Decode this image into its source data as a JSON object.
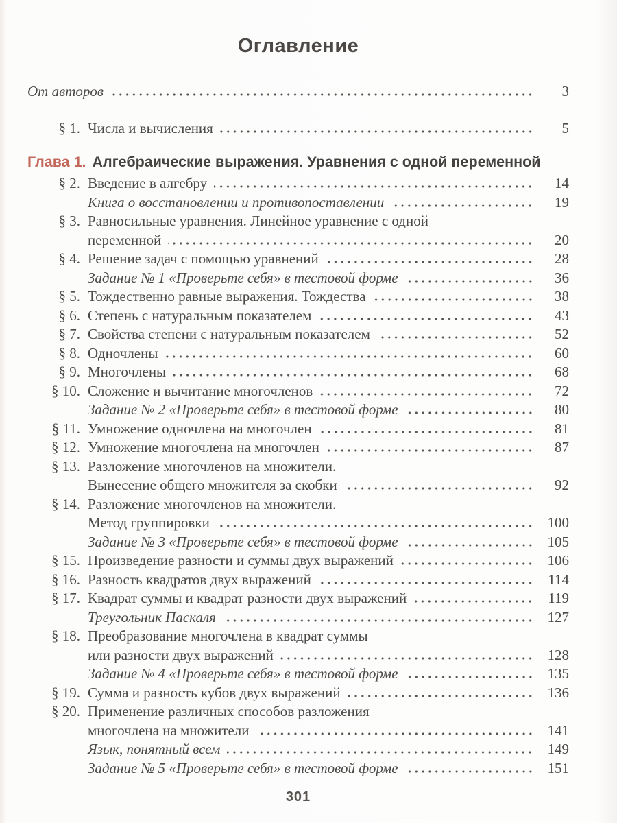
{
  "page": {
    "heading": "Оглавление",
    "folio": "301"
  },
  "colors": {
    "chapter_label": "#c4685c",
    "body_text": "#4c4a48",
    "bold_text": "#454240",
    "page_background": "#fdfdfc"
  },
  "front_entries": [
    {
      "num": "",
      "italic": true,
      "outdent": true,
      "lines": [
        "От авторов"
      ],
      "page": "3"
    },
    {
      "num": "§ 1.",
      "italic": false,
      "outdent": false,
      "lines": [
        "Числа и вычисления"
      ],
      "page": "5"
    }
  ],
  "chapter": {
    "label": "Глава 1.",
    "title": "Алгебраические выражения. Уравнения с одной переменной"
  },
  "entries": [
    {
      "num": "§ 2.",
      "italic": false,
      "outdent": false,
      "lines": [
        "Введение в алгебру"
      ],
      "page": "14"
    },
    {
      "num": "",
      "italic": true,
      "outdent": false,
      "lines": [
        "Книга о восстановлении и противопоставлении"
      ],
      "page": "19"
    },
    {
      "num": "§ 3.",
      "italic": false,
      "outdent": false,
      "lines": [
        "Равносильные уравнения. Линейное уравнение с одной",
        "переменной"
      ],
      "page": "20"
    },
    {
      "num": "§ 4.",
      "italic": false,
      "outdent": false,
      "lines": [
        "Решение задач с помощью уравнений"
      ],
      "page": "28"
    },
    {
      "num": "",
      "italic": true,
      "outdent": false,
      "lines": [
        "Задание № 1 «Проверьте себя» в тестовой форме"
      ],
      "page": "36"
    },
    {
      "num": "§ 5.",
      "italic": false,
      "outdent": false,
      "lines": [
        "Тождественно равные выражения. Тождества"
      ],
      "page": "38"
    },
    {
      "num": "§ 6.",
      "italic": false,
      "outdent": false,
      "lines": [
        "Степень с натуральным показателем"
      ],
      "page": "43"
    },
    {
      "num": "§ 7.",
      "italic": false,
      "outdent": false,
      "lines": [
        "Свойства степени с натуральным показателем"
      ],
      "page": "52"
    },
    {
      "num": "§ 8.",
      "italic": false,
      "outdent": false,
      "lines": [
        "Одночлены"
      ],
      "page": "60"
    },
    {
      "num": "§ 9.",
      "italic": false,
      "outdent": false,
      "lines": [
        "Многочлены"
      ],
      "page": "68"
    },
    {
      "num": "§ 10.",
      "italic": false,
      "outdent": false,
      "lines": [
        "Сложение и вычитание многочленов"
      ],
      "page": "72"
    },
    {
      "num": "",
      "italic": true,
      "outdent": false,
      "lines": [
        "Задание № 2 «Проверьте себя» в тестовой форме"
      ],
      "page": "80"
    },
    {
      "num": "§ 11.",
      "italic": false,
      "outdent": false,
      "lines": [
        "Умножение одночлена на многочлен"
      ],
      "page": "81"
    },
    {
      "num": "§ 12.",
      "italic": false,
      "outdent": false,
      "lines": [
        "Умножение многочлена на многочлен"
      ],
      "page": "87"
    },
    {
      "num": "§ 13.",
      "italic": false,
      "outdent": false,
      "lines": [
        "Разложение многочленов на множители.",
        "Вынесение общего множителя за скобки"
      ],
      "page": "92"
    },
    {
      "num": "§ 14.",
      "italic": false,
      "outdent": false,
      "lines": [
        "Разложение многочленов на множители.",
        "Метод группировки"
      ],
      "page": "100"
    },
    {
      "num": "",
      "italic": true,
      "outdent": false,
      "lines": [
        "Задание № 3 «Проверьте себя» в тестовой форме"
      ],
      "page": "105"
    },
    {
      "num": "§ 15.",
      "italic": false,
      "outdent": false,
      "lines": [
        "Произведение разности и суммы двух выражений"
      ],
      "page": "106"
    },
    {
      "num": "§ 16.",
      "italic": false,
      "outdent": false,
      "lines": [
        "Разность квадратов двух выражений"
      ],
      "page": "114"
    },
    {
      "num": "§ 17.",
      "italic": false,
      "outdent": false,
      "lines": [
        "Квадрат суммы и квадрат разности двух выражений"
      ],
      "page": "119"
    },
    {
      "num": "",
      "italic": true,
      "outdent": false,
      "lines": [
        "Треугольник Паскаля"
      ],
      "page": "127"
    },
    {
      "num": "§ 18.",
      "italic": false,
      "outdent": false,
      "lines": [
        "Преобразование многочлена в квадрат суммы",
        "или разности двух выражений"
      ],
      "page": "128"
    },
    {
      "num": "",
      "italic": true,
      "outdent": false,
      "lines": [
        "Задание № 4 «Проверьте себя» в тестовой форме"
      ],
      "page": "135"
    },
    {
      "num": "§ 19.",
      "italic": false,
      "outdent": false,
      "lines": [
        "Сумма и разность кубов двух выражений"
      ],
      "page": "136"
    },
    {
      "num": "§ 20.",
      "italic": false,
      "outdent": false,
      "lines": [
        "Применение различных способов разложения",
        "многочлена на множители"
      ],
      "page": "141"
    },
    {
      "num": "",
      "italic": true,
      "outdent": false,
      "lines": [
        "Язык, понятный всем"
      ],
      "page": "149"
    },
    {
      "num": "",
      "italic": true,
      "outdent": false,
      "lines": [
        "Задание № 5 «Проверьте себя» в тестовой форме"
      ],
      "page": "151"
    }
  ]
}
